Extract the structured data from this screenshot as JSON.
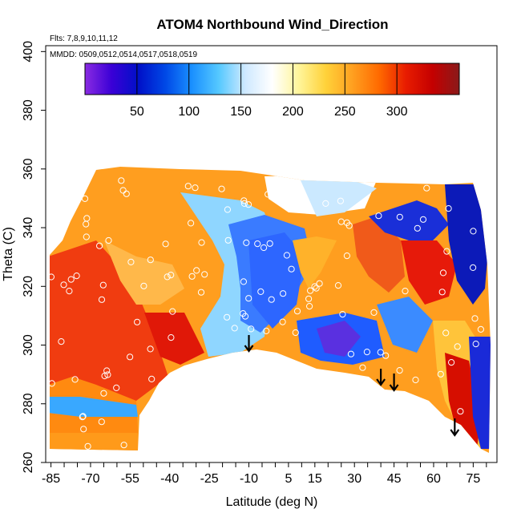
{
  "chart_data": {
    "type": "heatmap",
    "title": "ATOM4 Northbound Wind_Direction",
    "notes": [
      "Flts: 7,8,9,10,11,12",
      "MMDD: 0509,0512,0514,0517,0518,0519"
    ],
    "xlabel": "Latitude (deg N)",
    "ylabel": "Theta (C)",
    "xlim": [
      -87,
      84
    ],
    "ylim": [
      260,
      402
    ],
    "x_ticks": [
      "-85",
      "-70",
      "-55",
      "-40",
      "-25",
      "-10",
      "5",
      "15",
      "30",
      "45",
      "60",
      "75"
    ],
    "x_tick_values": [
      -85,
      -70,
      -55,
      -40,
      -25,
      -10,
      5,
      15,
      30,
      45,
      60,
      75
    ],
    "y_ticks": [
      "260",
      "280",
      "300",
      "320",
      "340",
      "360",
      "380",
      "400"
    ],
    "y_tick_values": [
      260,
      280,
      300,
      320,
      340,
      360,
      380,
      400
    ],
    "colorbar": {
      "range": [
        0,
        360
      ],
      "ticks": [
        "50",
        "100",
        "150",
        "200",
        "250",
        "300"
      ],
      "tick_values": [
        50,
        100,
        150,
        200,
        250,
        300
      ],
      "colors": [
        "#8a2be2",
        "#3a00d6",
        "#0010c8",
        "#0048e6",
        "#1a90ff",
        "#55c8ff",
        "#cfe9ff",
        "#ffffff",
        "#fff59a",
        "#ffd23a",
        "#ffa020",
        "#ff6a00",
        "#e81c00",
        "#c40000",
        "#8a1a1a"
      ]
    },
    "grid": false,
    "legend_position": "top",
    "arrows_latitude": [
      -10,
      40,
      45,
      68
    ]
  }
}
